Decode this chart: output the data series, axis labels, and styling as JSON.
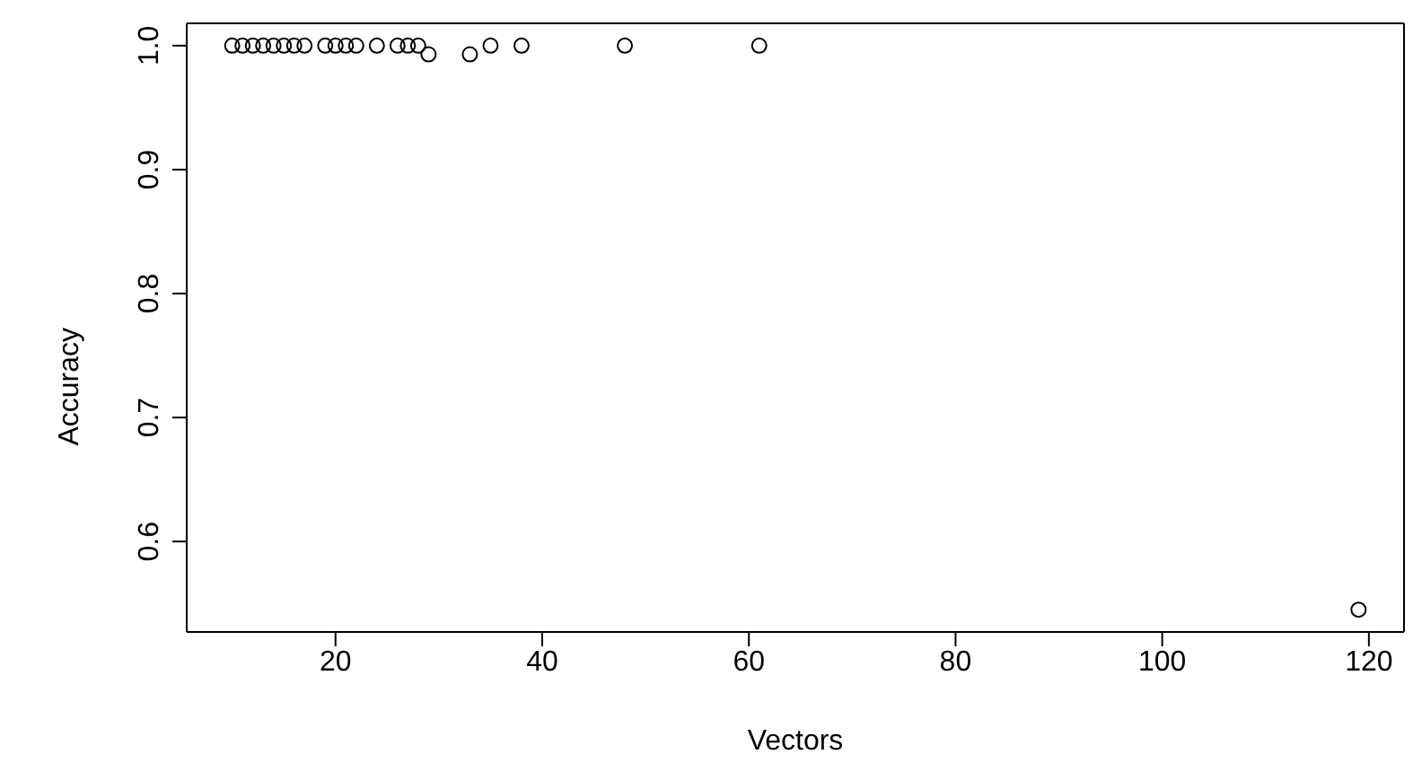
{
  "chart_data": {
    "type": "scatter",
    "xlabel": "Vectors",
    "ylabel": "Accuracy",
    "x": [
      10,
      11,
      12,
      13,
      14,
      15,
      16,
      17,
      19,
      20,
      21,
      22,
      24,
      26,
      27,
      28,
      29,
      33,
      35,
      38,
      48,
      61,
      119
    ],
    "values": [
      1,
      1,
      1,
      1,
      1,
      1,
      1,
      1,
      1,
      1,
      1,
      1,
      1,
      1,
      1,
      1,
      0.993,
      0.993,
      1,
      1,
      1,
      1,
      0.545
    ],
    "color": "#000000",
    "marker": "circle",
    "xlim": [
      5.6,
      123.4
    ],
    "ylim": [
      0.527,
      1.018
    ],
    "xticks": [
      20,
      40,
      60,
      80,
      100,
      120
    ],
    "yticks": [
      0.6,
      0.7,
      0.8,
      0.9,
      {
        "value": 1,
        "label": "1.0"
      }
    ],
    "grid": false,
    "legend": false
  }
}
